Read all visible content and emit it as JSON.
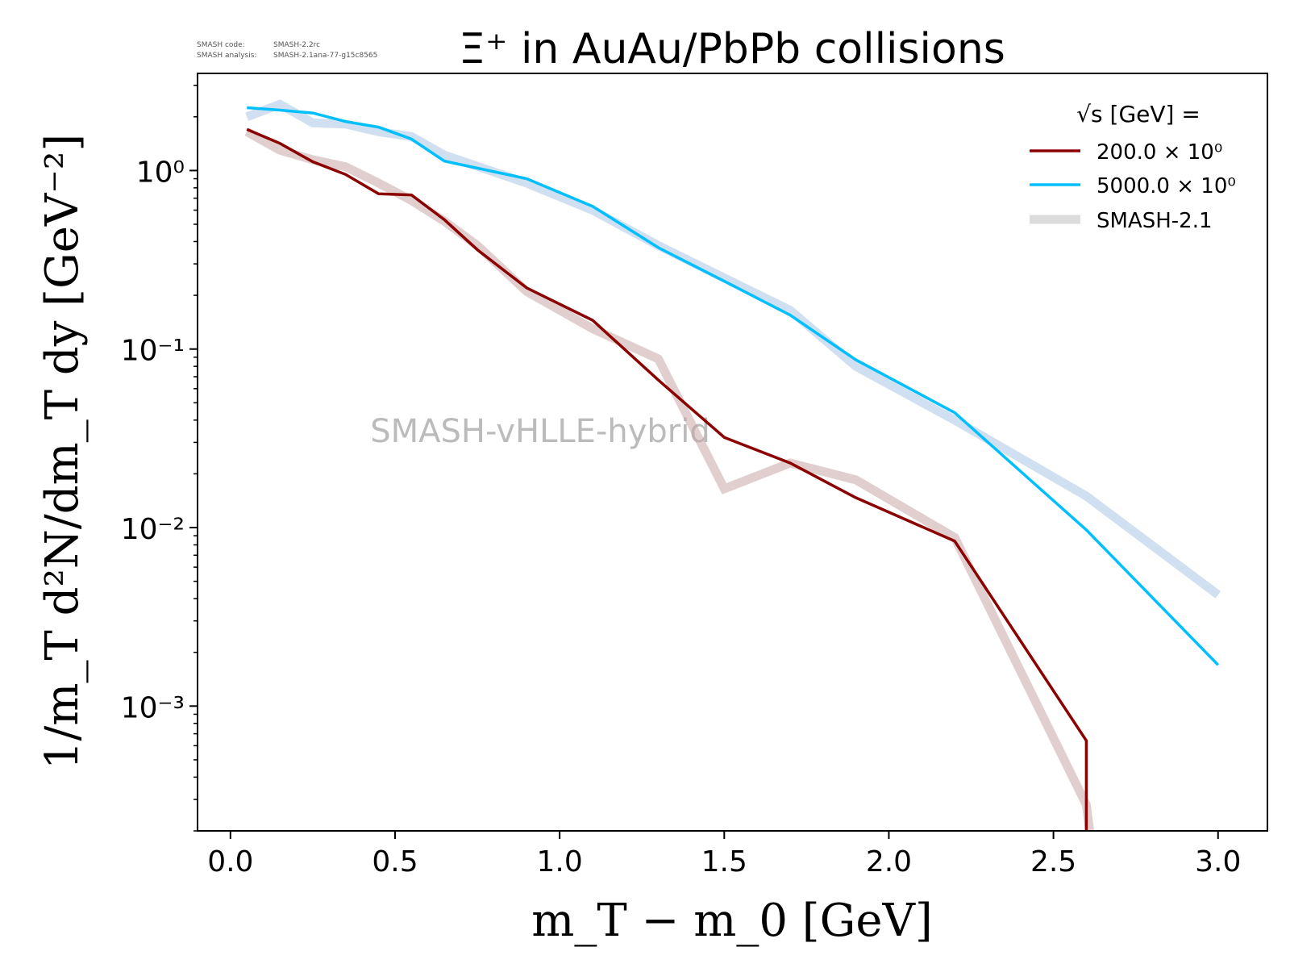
{
  "meta": {
    "code_label": "SMASH code:",
    "code_value": "SMASH-2.2rc",
    "analysis_label": "SMASH analysis:",
    "analysis_value": "SMASH-2.1ana-77-g15c8565"
  },
  "watermark": "SMASH-vHLLE-hybrid",
  "chart_data": {
    "type": "line",
    "title": "Ξ⁺ in AuAu/PbPb collisions",
    "xlabel": "m_T − m_0 [GeV]",
    "ylabel": "1/m_T d²N/dm_T dy [GeV⁻²]",
    "yscale": "log",
    "xlim": [
      -0.1,
      3.15
    ],
    "ylim": [
      0.0002,
      3.5
    ],
    "grid": false,
    "legend": {
      "placement": "top-right",
      "title": "√s  [GeV] =",
      "entries": [
        "200.0 × 10⁰",
        "5000.0 × 10⁰",
        "SMASH-2.1"
      ]
    },
    "x_ticks": [
      0.0,
      0.5,
      1.0,
      1.5,
      2.0,
      2.5,
      3.0
    ],
    "x_tick_labels": [
      "0.0",
      "0.5",
      "1.0",
      "1.5",
      "2.0",
      "2.5",
      "3.0"
    ],
    "y_ticks": [
      1,
      0.1,
      0.01,
      0.001
    ],
    "y_tick_labels": [
      "10⁰",
      "10⁻¹",
      "10⁻²",
      "10⁻³"
    ],
    "series": [
      {
        "name": "SMASH-2.1",
        "color": "#c8a8a8",
        "style": "reference",
        "x": [
          0.05,
          0.15,
          0.25,
          0.35,
          0.45,
          0.55,
          0.65,
          0.75,
          0.9,
          1.1,
          1.3,
          1.5,
          1.7,
          1.9,
          2.2,
          2.6,
          2.61
        ],
        "y": [
          1.65,
          1.3,
          1.15,
          1.05,
          0.85,
          0.68,
          0.52,
          0.38,
          0.21,
          0.13,
          0.088,
          0.0165,
          0.023,
          0.0185,
          0.0088,
          0.00028,
          0.00018
        ]
      },
      {
        "name": "SMASH-2.1",
        "color": "#a9c6e4",
        "style": "reference",
        "x": [
          0.05,
          0.15,
          0.25,
          0.35,
          0.45,
          0.55,
          0.65,
          0.9,
          1.1,
          1.3,
          1.5,
          1.7,
          1.9,
          2.2,
          2.6,
          3.0
        ],
        "y": [
          2.0,
          2.35,
          1.85,
          1.82,
          1.65,
          1.55,
          1.22,
          0.85,
          0.6,
          0.38,
          0.25,
          0.165,
          0.08,
          0.04,
          0.015,
          0.0042
        ]
      },
      {
        "name": "200.0 × 10⁰",
        "color": "#8b0000",
        "style": "solid",
        "x": [
          0.05,
          0.15,
          0.25,
          0.35,
          0.45,
          0.55,
          0.65,
          0.75,
          0.9,
          1.1,
          1.3,
          1.5,
          1.7,
          1.9,
          2.2,
          2.6,
          2.6
        ],
        "y": [
          1.7,
          1.42,
          1.12,
          0.95,
          0.74,
          0.73,
          0.53,
          0.36,
          0.22,
          0.145,
          0.067,
          0.032,
          0.023,
          0.0147,
          0.0084,
          0.00064,
          0.00018
        ]
      },
      {
        "name": "5000.0 × 10⁰",
        "color": "#00bfff",
        "style": "solid",
        "x": [
          0.05,
          0.15,
          0.25,
          0.35,
          0.45,
          0.55,
          0.65,
          0.9,
          1.1,
          1.3,
          1.5,
          1.7,
          1.9,
          2.2,
          2.6,
          3.0
        ],
        "y": [
          2.25,
          2.18,
          2.1,
          1.88,
          1.75,
          1.5,
          1.13,
          0.9,
          0.63,
          0.37,
          0.24,
          0.155,
          0.087,
          0.044,
          0.0097,
          0.0017
        ]
      }
    ]
  }
}
